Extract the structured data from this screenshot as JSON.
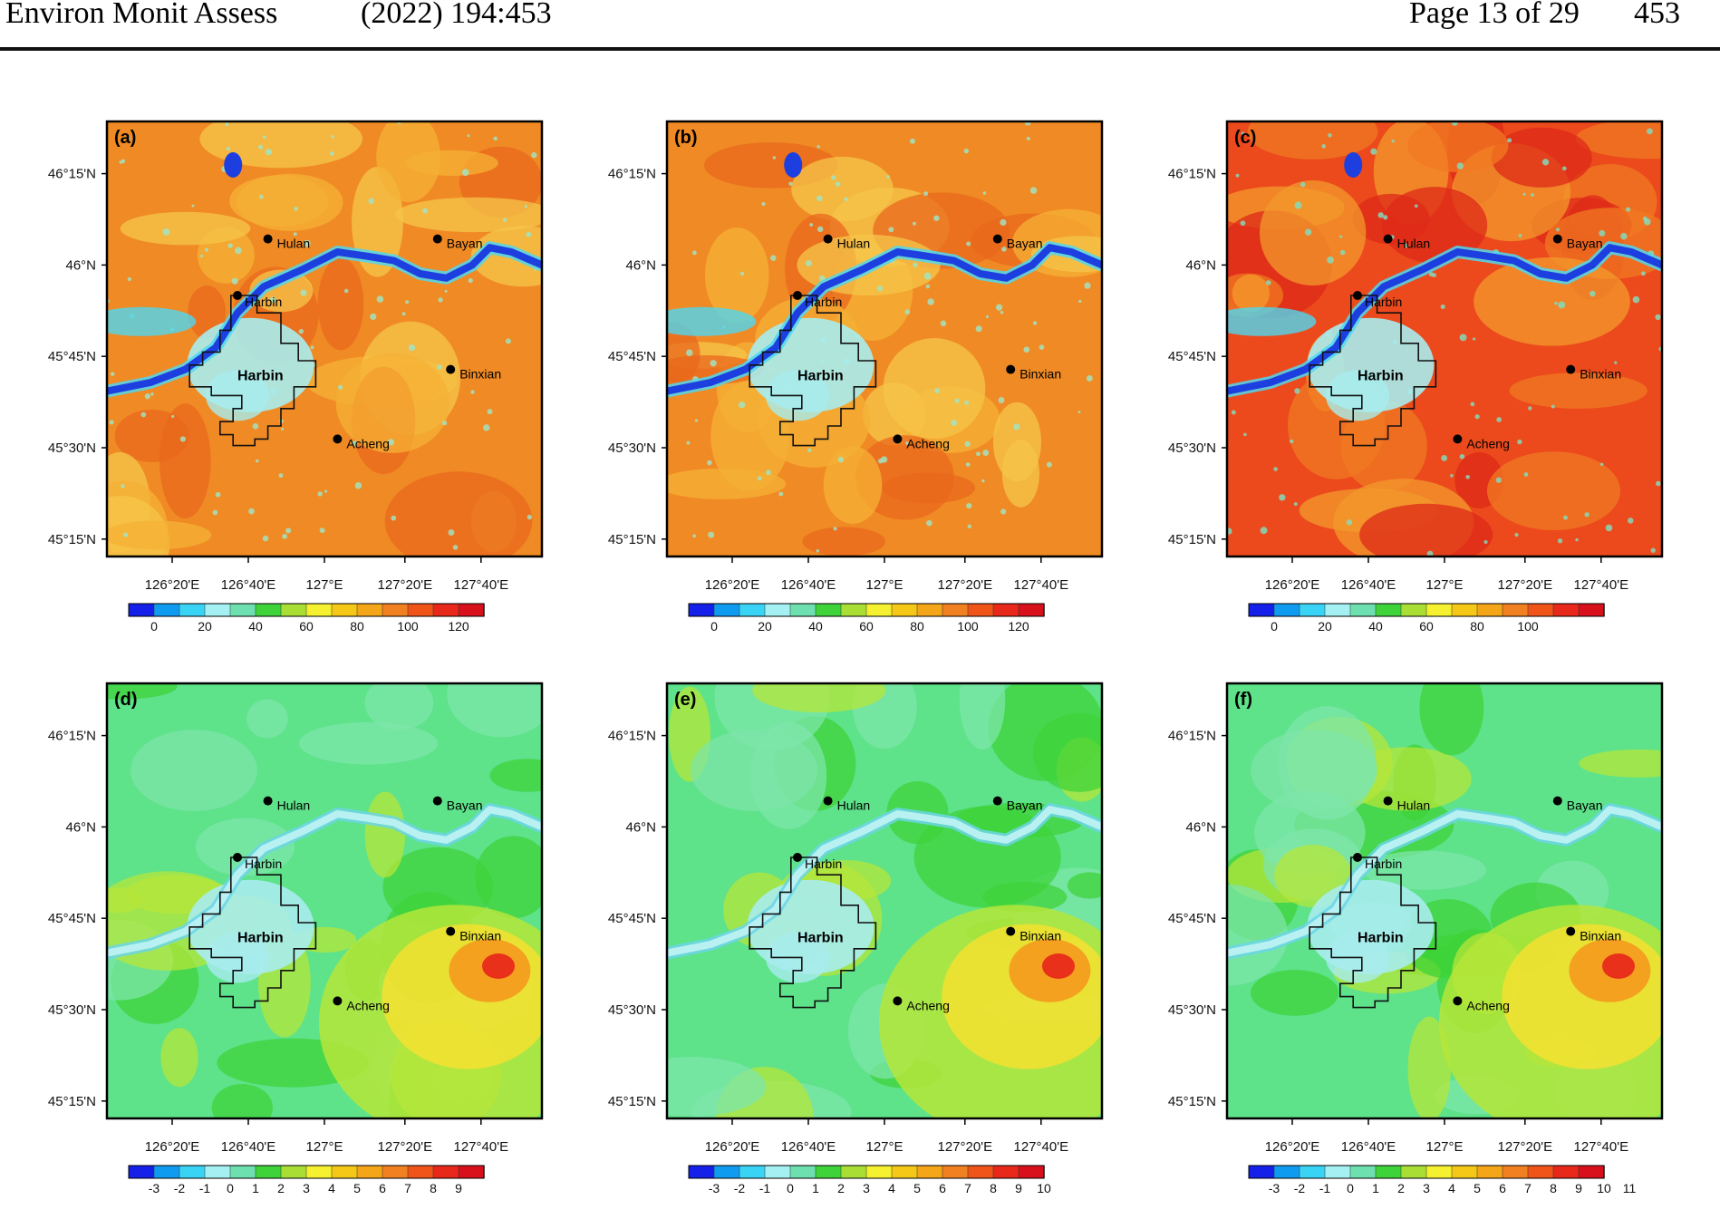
{
  "header": {
    "journal": "Environ Monit Assess",
    "volume": "(2022) 194:453",
    "page": "Page 13 of 29",
    "article": "453"
  },
  "lat_labels": [
    "46°15'N",
    "46°N",
    "45°45'N",
    "45°30'N",
    "45°15'N"
  ],
  "lon_labels": [
    "126°20'E",
    "126°40'E",
    "127°E",
    "127°20'E",
    "127°40'E"
  ],
  "cities": {
    "hulan": "Hulan",
    "bayan": "Bayan",
    "harbin_point": "Harbin",
    "binxian": "Binxian",
    "acheng": "Acheng",
    "harbin_area": "Harbin"
  },
  "panels": [
    {
      "tag": "(a)",
      "palette": "orange",
      "colorbar": {
        "ticks": [
          "0",
          "20",
          "40",
          "60",
          "80",
          "100",
          "120"
        ],
        "colors": [
          "#1520e8",
          "#0f9cf0",
          "#39d4f5",
          "#a5f0f2",
          "#6ee0b0",
          "#3fd33a",
          "#a9df35",
          "#f5f030",
          "#f5c818",
          "#f5a518",
          "#f08020",
          "#f05418",
          "#e8281a",
          "#d8101c"
        ]
      }
    },
    {
      "tag": "(b)",
      "palette": "orange",
      "colorbar": {
        "ticks": [
          "0",
          "20",
          "40",
          "60",
          "80",
          "100",
          "120"
        ],
        "colors": [
          "#1520e8",
          "#0f9cf0",
          "#39d4f5",
          "#a5f0f2",
          "#6ee0b0",
          "#3fd33a",
          "#a9df35",
          "#f5f030",
          "#f5c818",
          "#f5a518",
          "#f08020",
          "#f05418",
          "#e8281a",
          "#d8101c"
        ]
      }
    },
    {
      "tag": "(c)",
      "palette": "red",
      "colorbar": {
        "ticks": [
          "0",
          "20",
          "40",
          "60",
          "80",
          "100"
        ],
        "colors": [
          "#1520e8",
          "#0f9cf0",
          "#39d4f5",
          "#a5f0f2",
          "#6ee0b0",
          "#3fd33a",
          "#a9df35",
          "#f5f030",
          "#f5c818",
          "#f5a518",
          "#f08020",
          "#f05418",
          "#e8281a",
          "#d8101c"
        ]
      }
    },
    {
      "tag": "(d)",
      "palette": "green",
      "colorbar": {
        "ticks": [
          "-3",
          "-2",
          "-1",
          "0",
          "1",
          "2",
          "3",
          "4",
          "5",
          "6",
          "7",
          "8",
          "9"
        ],
        "colors": [
          "#1520e8",
          "#0f9cf0",
          "#39d4f5",
          "#a5f0f2",
          "#6ee0b0",
          "#3fd33a",
          "#a9df35",
          "#f5f030",
          "#f5c818",
          "#f5a518",
          "#f08020",
          "#f05418",
          "#e8281a",
          "#d8101c"
        ]
      }
    },
    {
      "tag": "(e)",
      "palette": "green",
      "colorbar": {
        "ticks": [
          "-3",
          "-2",
          "-1",
          "0",
          "1",
          "2",
          "3",
          "4",
          "5",
          "6",
          "7",
          "8",
          "9",
          "10"
        ],
        "colors": [
          "#1520e8",
          "#0f9cf0",
          "#39d4f5",
          "#a5f0f2",
          "#6ee0b0",
          "#3fd33a",
          "#a9df35",
          "#f5f030",
          "#f5c818",
          "#f5a518",
          "#f08020",
          "#f05418",
          "#e8281a",
          "#d8101c"
        ]
      }
    },
    {
      "tag": "(f)",
      "palette": "green",
      "colorbar": {
        "ticks": [
          "-3",
          "-2",
          "-1",
          "0",
          "1",
          "2",
          "3",
          "4",
          "5",
          "6",
          "7",
          "8",
          "9",
          "10",
          "11"
        ],
        "colors": [
          "#1520e8",
          "#0f9cf0",
          "#39d4f5",
          "#a5f0f2",
          "#6ee0b0",
          "#3fd33a",
          "#a9df35",
          "#f5f030",
          "#f5c818",
          "#f5a518",
          "#f08020",
          "#f05418",
          "#e8281a",
          "#d8101c"
        ]
      }
    }
  ],
  "palettes": {
    "orange": {
      "base": "#f08a24",
      "patch1": "#f5b035",
      "patch2": "#e9681c",
      "patch3": "#f6c54a",
      "urban": "#a8ecee",
      "river": "#1d3fe0",
      "riverEdge": "#4fd7f0",
      "speck": "#9fe6c8"
    },
    "red": {
      "base": "#ec4a1c",
      "patch1": "#f07a22",
      "patch2": "#de2a18",
      "patch3": "#f39a2c",
      "urban": "#a8ecee",
      "river": "#1d3fe0",
      "riverEdge": "#4fd7f0",
      "speck": "#7fe0c2"
    },
    "green": {
      "base": "#5ee28a",
      "patch1": "#3fd33a",
      "patch2": "#7ee6aa",
      "patch3": "#b5e63a",
      "hot1": "#f5e030",
      "hot2": "#f59a1e",
      "hot3": "#e8301a",
      "urban": "#a8ecee",
      "river": "#b9f1f2",
      "riverEdge": "#6cd6e6"
    }
  }
}
